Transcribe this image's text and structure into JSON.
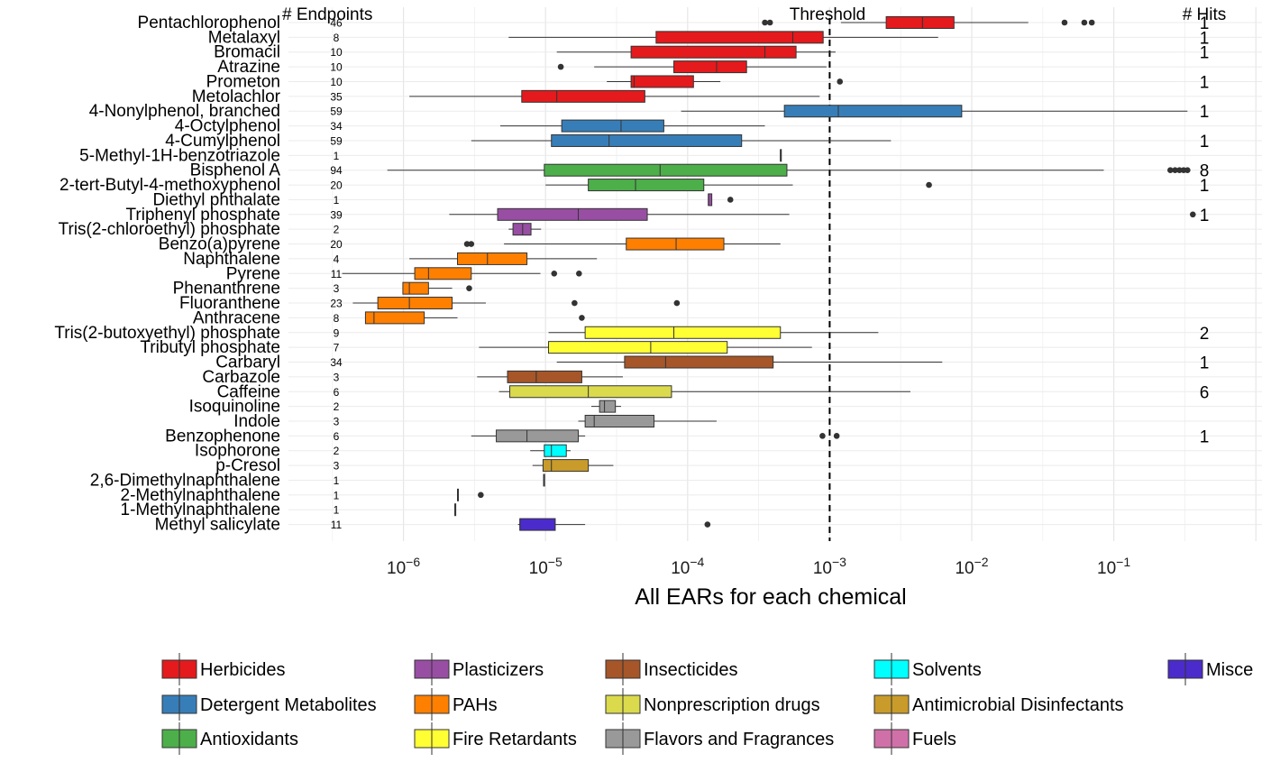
{
  "chart_data": {
    "type": "boxplot",
    "orientation": "horizontal",
    "x_scale": "log10",
    "xlim": [
      2e-07,
      1.0
    ],
    "x_ticks": [
      {
        "value": 1e-06,
        "base": "10",
        "exp": "−6"
      },
      {
        "value": 1e-05,
        "base": "10",
        "exp": "−5"
      },
      {
        "value": 0.0001,
        "base": "10",
        "exp": "−4"
      },
      {
        "value": 0.001,
        "base": "10",
        "exp": "−3"
      },
      {
        "value": 0.01,
        "base": "10",
        "exp": "−2"
      },
      {
        "value": 0.1,
        "base": "10",
        "exp": "−1"
      }
    ],
    "xlabel": "All EARs for each chemical",
    "threshold": {
      "value": 0.001,
      "label": "Threshold",
      "style": "dashed"
    },
    "headers": {
      "endpoints": "# Endpoints",
      "hits": "# Hits"
    },
    "grid": true,
    "legend_position": "bottom",
    "classes": [
      {
        "name": "Herbicides",
        "color": "#E41A1C"
      },
      {
        "name": "Detergent Metabolites",
        "color": "#377EB8"
      },
      {
        "name": "Antioxidants",
        "color": "#4DAF4A"
      },
      {
        "name": "Plasticizers",
        "color": "#984EA3"
      },
      {
        "name": "PAHs",
        "color": "#FF7F00"
      },
      {
        "name": "Fire Retardants",
        "color": "#FFFF33"
      },
      {
        "name": "Insecticides",
        "color": "#A65628"
      },
      {
        "name": "Nonprescription drugs",
        "color": "#DADA4C"
      },
      {
        "name": "Flavors and Fragrances",
        "color": "#999999"
      },
      {
        "name": "Solvents",
        "color": "#00FFFF"
      },
      {
        "name": "Antimicrobial Disinfectants",
        "color": "#C89B2A"
      },
      {
        "name": "Fuels",
        "color": "#D070A8"
      },
      {
        "name": "Misce",
        "color": "#4B2BCB"
      }
    ],
    "rows": [
      {
        "chemical": "Pentachlorophenol",
        "class": "Herbicides",
        "endpoints": "46",
        "hits": "1",
        "min": 0.0012,
        "q1": 0.0025,
        "median": 0.0045,
        "q3": 0.0075,
        "max": 0.025,
        "outliers": [
          0.00035,
          0.00038,
          0.045,
          0.062,
          0.07
        ]
      },
      {
        "chemical": "Metalaxyl",
        "class": "Herbicides",
        "endpoints": "8",
        "hits": "1",
        "min": 5.5e-06,
        "q1": 6e-05,
        "median": 0.00055,
        "q3": 0.0009,
        "max": 0.0058,
        "outliers": []
      },
      {
        "chemical": "Bromacil",
        "class": "Herbicides",
        "endpoints": "10",
        "hits": "1",
        "min": 1.2e-05,
        "q1": 4e-05,
        "median": 0.00035,
        "q3": 0.00058,
        "max": 0.0011,
        "outliers": []
      },
      {
        "chemical": "Atrazine",
        "class": "Herbicides",
        "endpoints": "10",
        "hits": "",
        "min": 2.2e-05,
        "q1": 8e-05,
        "median": 0.00016,
        "q3": 0.00026,
        "max": 0.00095,
        "outliers": [
          1.28e-05
        ]
      },
      {
        "chemical": "Prometon",
        "class": "Herbicides",
        "endpoints": "10",
        "hits": "1",
        "min": 2.7e-05,
        "q1": 4e-05,
        "median": 4.2e-05,
        "q3": 0.00011,
        "max": 0.00017,
        "outliers": [
          0.00118
        ]
      },
      {
        "chemical": "Metolachlor",
        "class": "Herbicides",
        "endpoints": "35",
        "hits": "",
        "min": 1.1e-06,
        "q1": 6.8e-06,
        "median": 1.2e-05,
        "q3": 5e-05,
        "max": 0.00085,
        "outliers": []
      },
      {
        "chemical": "4-Nonylphenol, branched",
        "class": "Detergent Metabolites",
        "endpoints": "59",
        "hits": "1",
        "min": 9e-05,
        "q1": 0.00048,
        "median": 0.00115,
        "q3": 0.0085,
        "max": 0.33,
        "outliers": []
      },
      {
        "chemical": "4-Octylphenol",
        "class": "Detergent Metabolites",
        "endpoints": "34",
        "hits": "",
        "min": 4.8e-06,
        "q1": 1.3e-05,
        "median": 3.4e-05,
        "q3": 6.8e-05,
        "max": 0.00035,
        "outliers": []
      },
      {
        "chemical": "4-Cumylphenol",
        "class": "Detergent Metabolites",
        "endpoints": "59",
        "hits": "1",
        "min": 3e-06,
        "q1": 1.1e-05,
        "median": 2.8e-05,
        "q3": 0.00024,
        "max": 0.0027,
        "outliers": []
      },
      {
        "chemical": "5-Methyl-1H-benzotriazole",
        "class": "Antioxidants",
        "endpoints": "1",
        "hits": "",
        "min": 0.00045,
        "q1": 0.00045,
        "median": 0.00045,
        "q3": 0.00045,
        "max": 0.00045,
        "outliers": []
      },
      {
        "chemical": "Bisphenol A",
        "class": "Antioxidants",
        "endpoints": "94",
        "hits": "8",
        "min": 7.7e-07,
        "q1": 9.8e-06,
        "median": 6.4e-05,
        "q3": 0.0005,
        "max": 0.085,
        "outliers": [
          0.25,
          0.27,
          0.29,
          0.31,
          0.33
        ]
      },
      {
        "chemical": "2-tert-Butyl-4-methoxyphenol",
        "class": "Antioxidants",
        "endpoints": "20",
        "hits": "1",
        "min": 1e-05,
        "q1": 2e-05,
        "median": 4.3e-05,
        "q3": 0.00013,
        "max": 0.00055,
        "outliers": [
          0.005
        ]
      },
      {
        "chemical": "Diethyl phthalate",
        "class": "Plasticizers",
        "endpoints": "1",
        "hits": "",
        "min": 0.00014,
        "q1": 0.00014,
        "median": 0.00014,
        "q3": 0.000148,
        "max": 0.000148,
        "outliers": [
          0.0002
        ]
      },
      {
        "chemical": "Triphenyl phosphate",
        "class": "Plasticizers",
        "endpoints": "39",
        "hits": "1",
        "min": 2.1e-06,
        "q1": 4.6e-06,
        "median": 1.7e-05,
        "q3": 5.2e-05,
        "max": 0.00052,
        "outliers": [
          0.36
        ]
      },
      {
        "chemical": "Tris(2-chloroethyl) phosphate",
        "class": "Plasticizers",
        "endpoints": "2",
        "hits": "",
        "min": 5.5e-06,
        "q1": 5.9e-06,
        "median": 6.9e-06,
        "q3": 7.9e-06,
        "max": 9.3e-06,
        "outliers": []
      },
      {
        "chemical": "Benzo(a)pyrene",
        "class": "PAHs",
        "endpoints": "20",
        "hits": "",
        "min": 5.1e-06,
        "q1": 3.7e-05,
        "median": 8.3e-05,
        "q3": 0.00018,
        "max": 0.00045,
        "outliers": [
          2.8e-06,
          3e-06
        ]
      },
      {
        "chemical": "Naphthalene",
        "class": "PAHs",
        "endpoints": "4",
        "hits": "",
        "min": 1.1e-06,
        "q1": 2.4e-06,
        "median": 3.9e-06,
        "q3": 7.4e-06,
        "max": 2.3e-05,
        "outliers": []
      },
      {
        "chemical": "Pyrene",
        "class": "PAHs",
        "endpoints": "11",
        "hits": "",
        "min": 3.7e-07,
        "q1": 1.2e-06,
        "median": 1.5e-06,
        "q3": 3e-06,
        "max": 9.2e-06,
        "outliers": [
          1.15e-05,
          1.72e-05
        ]
      },
      {
        "chemical": "Phenanthrene",
        "class": "PAHs",
        "endpoints": "3",
        "hits": "",
        "min": 9.9e-07,
        "q1": 9.9e-07,
        "median": 1.1e-06,
        "q3": 1.5e-06,
        "max": 2.2e-06,
        "outliers": [
          2.9e-06
        ]
      },
      {
        "chemical": "Fluoranthene",
        "class": "PAHs",
        "endpoints": "23",
        "hits": "",
        "min": 4.4e-07,
        "q1": 6.6e-07,
        "median": 1.1e-06,
        "q3": 2.2e-06,
        "max": 3.8e-06,
        "outliers": [
          1.6e-05,
          8.4e-05
        ]
      },
      {
        "chemical": "Anthracene",
        "class": "PAHs",
        "endpoints": "8",
        "hits": "",
        "min": 5.4e-07,
        "q1": 5.4e-07,
        "median": 6.2e-07,
        "q3": 1.4e-06,
        "max": 2.4e-06,
        "outliers": [
          1.8e-05
        ]
      },
      {
        "chemical": "Tris(2-butoxyethyl) phosphate",
        "class": "Fire Retardants",
        "endpoints": "9",
        "hits": "2",
        "min": 1.05e-05,
        "q1": 1.9e-05,
        "median": 8e-05,
        "q3": 0.00045,
        "max": 0.0022,
        "outliers": []
      },
      {
        "chemical": "Tributyl phosphate",
        "class": "Fire Retardants",
        "endpoints": "7",
        "hits": "",
        "min": 3.4e-06,
        "q1": 1.05e-05,
        "median": 5.5e-05,
        "q3": 0.00019,
        "max": 0.00075,
        "outliers": []
      },
      {
        "chemical": "Carbaryl",
        "class": "Insecticides",
        "endpoints": "34",
        "hits": "1",
        "min": 1.2e-05,
        "q1": 3.6e-05,
        "median": 7e-05,
        "q3": 0.0004,
        "max": 0.0062,
        "outliers": []
      },
      {
        "chemical": "Carbazole",
        "class": "Insecticides",
        "endpoints": "3",
        "hits": "",
        "min": 3.3e-06,
        "q1": 5.4e-06,
        "median": 8.6e-06,
        "q3": 1.8e-05,
        "max": 3.5e-05,
        "outliers": []
      },
      {
        "chemical": "Caffeine",
        "class": "Nonprescription drugs",
        "endpoints": "6",
        "hits": "6",
        "min": 4.7e-06,
        "q1": 5.6e-06,
        "median": 2e-05,
        "q3": 7.7e-05,
        "max": 0.0037,
        "outliers": []
      },
      {
        "chemical": "Isoquinoline",
        "class": "Flavors and Fragrances",
        "endpoints": "2",
        "hits": "",
        "min": 2.1e-05,
        "q1": 2.4e-05,
        "median": 2.6e-05,
        "q3": 3.1e-05,
        "max": 3.4e-05,
        "outliers": []
      },
      {
        "chemical": "Indole",
        "class": "Flavors and Fragrances",
        "endpoints": "3",
        "hits": "",
        "min": 1.7e-05,
        "q1": 1.9e-05,
        "median": 2.2e-05,
        "q3": 5.8e-05,
        "max": 0.00016,
        "outliers": []
      },
      {
        "chemical": "Benzophenone",
        "class": "Flavors and Fragrances",
        "endpoints": "6",
        "hits": "1",
        "min": 3e-06,
        "q1": 4.5e-06,
        "median": 7.4e-06,
        "q3": 1.7e-05,
        "max": 1.9e-05,
        "outliers": [
          0.00089,
          0.00112
        ]
      },
      {
        "chemical": "Isophorone",
        "class": "Solvents",
        "endpoints": "2",
        "hits": "",
        "min": 7.8e-06,
        "q1": 9.8e-06,
        "median": 1.1e-05,
        "q3": 1.4e-05,
        "max": 1.5e-05,
        "outliers": []
      },
      {
        "chemical": "p-Cresol",
        "class": "Antimicrobial Disinfectants",
        "endpoints": "3",
        "hits": "",
        "min": 8.1e-06,
        "q1": 9.6e-06,
        "median": 1.1e-05,
        "q3": 2e-05,
        "max": 3e-05,
        "outliers": []
      },
      {
        "chemical": "2,6-Dimethylnaphthalene",
        "class": "Fuels",
        "endpoints": "1",
        "hits": "",
        "min": 9.7e-06,
        "q1": 9.7e-06,
        "median": 9.7e-06,
        "q3": 9.7e-06,
        "max": 9.7e-06,
        "outliers": []
      },
      {
        "chemical": "2-Methylnaphthalene",
        "class": "Fuels",
        "endpoints": "1",
        "hits": "",
        "min": 2.4e-06,
        "q1": 2.4e-06,
        "median": 2.4e-06,
        "q3": 2.4e-06,
        "max": 2.4e-06,
        "outliers": [
          3.5e-06
        ]
      },
      {
        "chemical": "1-Methylnaphthalene",
        "class": "Fuels",
        "endpoints": "1",
        "hits": "",
        "min": 2.3e-06,
        "q1": 2.3e-06,
        "median": 2.3e-06,
        "q3": 2.3e-06,
        "max": 2.3e-06,
        "outliers": []
      },
      {
        "chemical": "Methyl salicylate",
        "class": "Misce",
        "endpoints": "11",
        "hits": "",
        "min": 6.4e-06,
        "q1": 6.6e-06,
        "median": 6.6e-06,
        "q3": 1.17e-05,
        "max": 1.9e-05,
        "outliers": [
          0.000138
        ]
      }
    ]
  }
}
